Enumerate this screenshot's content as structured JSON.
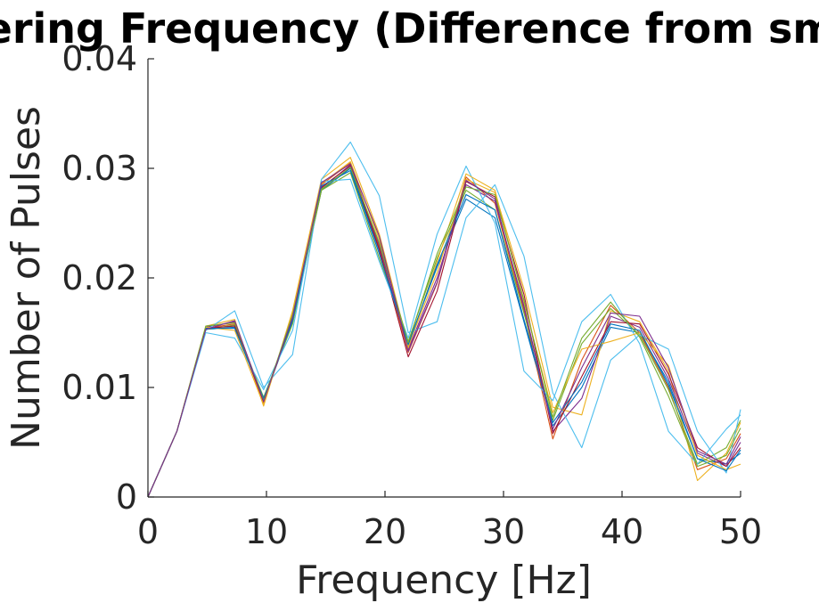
{
  "chart_data": {
    "type": "line",
    "title": "ering Frequency (Difference from sm",
    "xlabel": "Frequency [Hz]",
    "ylabel": "Number of Pulses",
    "xlim": [
      0,
      50
    ],
    "ylim": [
      0,
      0.04
    ],
    "xticks": [
      0,
      10,
      20,
      30,
      40,
      50
    ],
    "xtick_labels": [
      "0",
      "10",
      "20",
      "30",
      "40",
      "50"
    ],
    "yticks": [
      0,
      0.01,
      0.02,
      0.03,
      0.04
    ],
    "ytick_labels": [
      "0",
      "0.01",
      "0.02",
      "0.03",
      "0.04"
    ],
    "grid": false,
    "legend": "none",
    "x": [
      0,
      2.44,
      4.88,
      7.32,
      9.76,
      12.2,
      14.64,
      17.08,
      19.52,
      21.96,
      24.4,
      26.84,
      29.28,
      31.72,
      34.16,
      36.6,
      39.04,
      41.48,
      43.92,
      46.36,
      48.8,
      50
    ],
    "series": [
      {
        "color": "#0072BD",
        "values": [
          0,
          0.006,
          0.0153,
          0.0155,
          0.0088,
          0.016,
          0.028,
          0.03,
          0.0225,
          0.014,
          0.021,
          0.0272,
          0.0255,
          0.016,
          0.0065,
          0.01,
          0.0155,
          0.015,
          0.0105,
          0.0035,
          0.003,
          0.004
        ]
      },
      {
        "color": "#D95319",
        "values": [
          0,
          0.006,
          0.0154,
          0.0158,
          0.0086,
          0.0165,
          0.0285,
          0.0305,
          0.0228,
          0.0132,
          0.0195,
          0.0292,
          0.0268,
          0.017,
          0.0053,
          0.0125,
          0.0175,
          0.015,
          0.01,
          0.0025,
          0.0035,
          0.0058
        ]
      },
      {
        "color": "#EDB120",
        "values": [
          0,
          0.006,
          0.0156,
          0.0162,
          0.0083,
          0.017,
          0.029,
          0.031,
          0.024,
          0.0138,
          0.0205,
          0.029,
          0.0278,
          0.019,
          0.0082,
          0.0075,
          0.017,
          0.016,
          0.0115,
          0.0015,
          0.004,
          0.0068
        ]
      },
      {
        "color": "#7E2F8E",
        "values": [
          0,
          0.006,
          0.0155,
          0.016,
          0.0089,
          0.0162,
          0.0283,
          0.0302,
          0.023,
          0.0135,
          0.02,
          0.0285,
          0.027,
          0.0175,
          0.006,
          0.009,
          0.0165,
          0.0155,
          0.0108,
          0.004,
          0.0028,
          0.005
        ]
      },
      {
        "color": "#77AC30",
        "values": [
          0,
          0.006,
          0.0153,
          0.0157,
          0.0091,
          0.0158,
          0.028,
          0.0296,
          0.0218,
          0.0142,
          0.0218,
          0.028,
          0.0262,
          0.0168,
          0.007,
          0.014,
          0.0172,
          0.0148,
          0.0098,
          0.003,
          0.0045,
          0.007
        ]
      },
      {
        "color": "#4DBEEE",
        "values": [
          0,
          0.006,
          0.0152,
          0.017,
          0.01,
          0.013,
          0.029,
          0.0324,
          0.0275,
          0.015,
          0.016,
          0.0255,
          0.0285,
          0.022,
          0.0095,
          0.0045,
          0.0125,
          0.0148,
          0.0135,
          0.006,
          0.0022,
          0.008
        ]
      },
      {
        "color": "#A2142F",
        "values": [
          0,
          0.006,
          0.0154,
          0.0156,
          0.0087,
          0.0163,
          0.0282,
          0.0303,
          0.0226,
          0.0128,
          0.0188,
          0.0288,
          0.0274,
          0.0185,
          0.0058,
          0.011,
          0.016,
          0.0158,
          0.0112,
          0.0045,
          0.0028,
          0.0045
        ]
      },
      {
        "color": "#4DBEEE",
        "values": [
          0,
          0.006,
          0.015,
          0.0145,
          0.0098,
          0.0152,
          0.0288,
          0.029,
          0.0215,
          0.0145,
          0.024,
          0.0302,
          0.025,
          0.0115,
          0.0088,
          0.016,
          0.0185,
          0.014,
          0.006,
          0.003,
          0.0062,
          0.0075
        ]
      },
      {
        "color": "#EDB120",
        "values": [
          0,
          0.006,
          0.0155,
          0.0152,
          0.0084,
          0.0168,
          0.0286,
          0.0306,
          0.0235,
          0.0136,
          0.0215,
          0.0295,
          0.028,
          0.0178,
          0.0077,
          0.0135,
          0.0142,
          0.015,
          0.012,
          0.0038,
          0.0025,
          0.003
        ]
      },
      {
        "color": "#0072BD",
        "values": [
          0,
          0.006,
          0.0154,
          0.0154,
          0.009,
          0.0161,
          0.0284,
          0.0298,
          0.0222,
          0.0139,
          0.0212,
          0.0276,
          0.0262,
          0.0162,
          0.0068,
          0.0105,
          0.0158,
          0.0152,
          0.0102,
          0.0035,
          0.0024,
          0.0043
        ]
      },
      {
        "color": "#77AC30",
        "values": [
          0,
          0.006,
          0.0156,
          0.0159,
          0.0088,
          0.0166,
          0.0281,
          0.0301,
          0.0232,
          0.0141,
          0.0222,
          0.0283,
          0.0276,
          0.018,
          0.0073,
          0.0145,
          0.0178,
          0.0146,
          0.0092,
          0.0028,
          0.0038,
          0.0063
        ]
      },
      {
        "color": "#7E2F8E",
        "values": [
          0,
          0.006,
          0.0153,
          0.0161,
          0.0087,
          0.0164,
          0.0287,
          0.0304,
          0.0238,
          0.0133,
          0.0196,
          0.0289,
          0.0272,
          0.0173,
          0.0062,
          0.0118,
          0.0168,
          0.0165,
          0.0118,
          0.0042,
          0.003,
          0.0055
        ]
      }
    ]
  }
}
